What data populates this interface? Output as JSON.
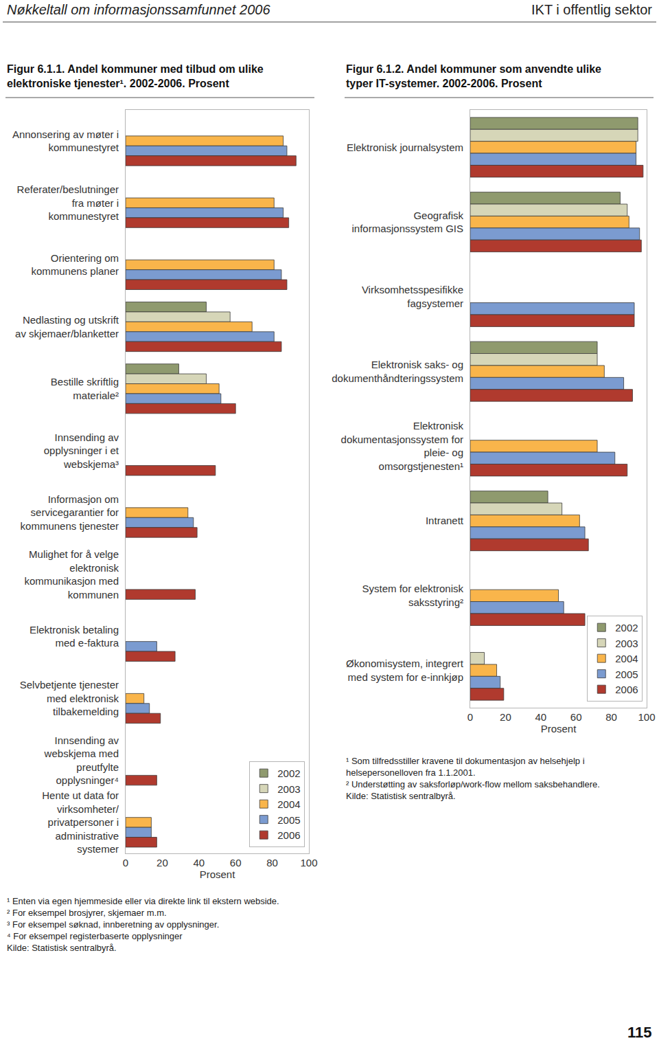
{
  "header": {
    "left": "Nøkkeltall om informasjonssamfunnet 2006",
    "right": "IKT i offentlig sektor"
  },
  "page_number": 115,
  "chart_data": [
    {
      "type": "bar",
      "orientation": "horizontal",
      "title": "Figur 6.1.1. Andel kommuner med tilbud om ulike elektroniske tjenester¹. 2002-2006. Prosent",
      "xlabel": "Prosent",
      "categories": [
        "Annonsering av møter i kommunestyret",
        "Referater/beslutninger fra møter i kommunestyret",
        "Orientering om kommunens planer",
        "Nedlasting og utskrift av skjemaer/blanketter",
        "Bestille skriftlig materiale²",
        "Innsending av opplysninger i et webskjema³",
        "Informasjon om servicegarantier for kommunens tjenester",
        "Mulighet for å velge elektronisk kommunikasjon med kommunen",
        "Elektronisk betaling med e-faktura",
        "Selvbetjente tjenester med elektronisk tilbakemelding",
        "Innsending av webskjema med preutfylte opplysninger⁴",
        "Hente ut data for virksomheter/ privatpersoner i administrative systemer"
      ],
      "series": [
        {
          "name": "2002",
          "color": "#8f9a6e",
          "values": [
            null,
            null,
            null,
            44,
            29,
            null,
            null,
            null,
            null,
            null,
            null,
            null
          ]
        },
        {
          "name": "2003",
          "color": "#d6d6b8",
          "values": [
            null,
            null,
            null,
            57,
            44,
            null,
            null,
            null,
            null,
            null,
            null,
            null
          ]
        },
        {
          "name": "2004",
          "color": "#f9b54b",
          "values": [
            86,
            81,
            81,
            69,
            51,
            null,
            34,
            null,
            null,
            10,
            null,
            14
          ]
        },
        {
          "name": "2005",
          "color": "#7b9bd0",
          "values": [
            88,
            86,
            85,
            81,
            52,
            null,
            37,
            null,
            17,
            13,
            null,
            14
          ]
        },
        {
          "name": "2006",
          "color": "#b03a2e",
          "values": [
            93,
            89,
            88,
            85,
            60,
            49,
            39,
            38,
            27,
            19,
            17,
            17
          ]
        }
      ],
      "xlim": [
        0,
        100
      ],
      "xticks": [
        0,
        20,
        40,
        60,
        80,
        100
      ],
      "grid": false,
      "legend": "lower right",
      "footnotes": [
        "¹ Enten via egen hjemmeside eller via direkte link til ekstern webside.",
        "² For eksempel brosjyrer, skjemaer m.m.",
        "³ For eksempel søknad, innberetning av opplysninger.",
        "⁴ For eksempel registerbaserte opplysninger",
        "Kilde: Statistisk sentralbyrå."
      ]
    },
    {
      "type": "bar",
      "orientation": "horizontal",
      "title": "Figur 6.1.2. Andel kommuner som anvendte ulike typer IT-systemer. 2002-2006. Prosent",
      "xlabel": "Prosent",
      "categories": [
        "Elektronisk journalsystem",
        "Geografisk informasjonssystem GIS",
        "Virksomhetsspesifikke fagsystemer",
        "Elektronisk saks- og dokumenthåndteringssystem",
        "Elektronisk dokumentasjonssystem for pleie- og omsorgstjenesten¹",
        "Intranett",
        "System for elektronisk saksstyring²",
        "Økonomisystem, integrert med system for e-innkjøp"
      ],
      "series": [
        {
          "name": "2002",
          "color": "#8f9a6e",
          "values": [
            95,
            85,
            null,
            72,
            null,
            44,
            null,
            null
          ]
        },
        {
          "name": "2003",
          "color": "#d6d6b8",
          "values": [
            95,
            89,
            null,
            72,
            null,
            52,
            null,
            8
          ]
        },
        {
          "name": "2004",
          "color": "#f9b54b",
          "values": [
            94,
            90,
            null,
            76,
            72,
            62,
            50,
            15
          ]
        },
        {
          "name": "2005",
          "color": "#7b9bd0",
          "values": [
            94,
            96,
            93,
            87,
            82,
            65,
            53,
            17
          ]
        },
        {
          "name": "2006",
          "color": "#b03a2e",
          "values": [
            98,
            97,
            93,
            92,
            89,
            67,
            65,
            19
          ]
        }
      ],
      "xlim": [
        0,
        100
      ],
      "xticks": [
        0,
        20,
        40,
        60,
        80,
        100
      ],
      "grid": false,
      "legend": "lower right",
      "footnotes": [
        "¹ Som tilfredsstiller kravene til dokumentasjon av helsehjelp i helsepersonelloven fra 1.1.2001.",
        "² Understøtting av saksforløp/work-flow mellom saksbehandlere.",
        "Kilde: Statistisk sentralbyrå."
      ]
    }
  ]
}
